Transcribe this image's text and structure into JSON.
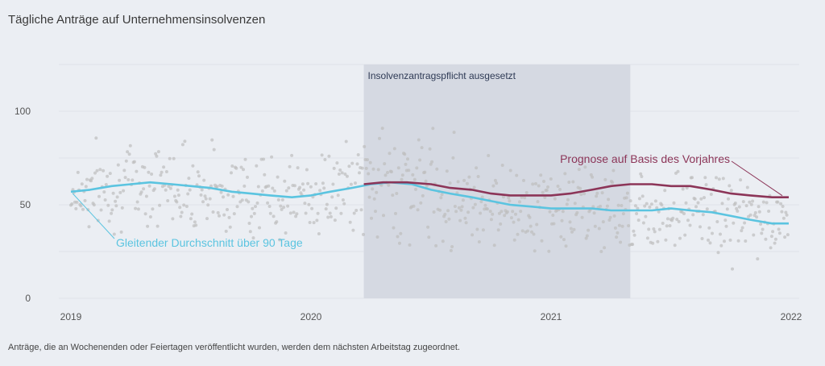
{
  "title": "Tägliche Anträge auf Unternehmensinsolvenzen",
  "footnote": "Anträge, die an Wochenenden oder Feiertagen veröffentlicht wurden, werden dem nächsten Arbeitstag zugeordnet.",
  "colors": {
    "background": "#ebeef3",
    "gridline": "#dfe3ea",
    "shade": "#d5d9e2",
    "dots": "#bdbdbd",
    "moving_average": "#5bc4e0",
    "forecast": "#8c3558"
  },
  "chart_data": {
    "type": "line",
    "title": "Tägliche Anträge auf Unternehmensinsolvenzen",
    "xlabel": "",
    "ylabel": "",
    "xlim": [
      2019.0,
      2022.0
    ],
    "ylim": [
      0,
      125
    ],
    "x_ticks": [
      "2019",
      "2020",
      "2021",
      "2022"
    ],
    "y_ticks": [
      0,
      50,
      100
    ],
    "grid": true,
    "shaded_period": {
      "label": "Insolvenzantragspflicht ausgesetzt",
      "x_start": 2020.22,
      "x_end": 2021.33
    },
    "series": [
      {
        "name": "Gleitender Durchschnitt über 90 Tage",
        "x": [
          2019.0,
          2019.08,
          2019.17,
          2019.25,
          2019.33,
          2019.42,
          2019.5,
          2019.58,
          2019.67,
          2019.75,
          2019.83,
          2019.92,
          2020.0,
          2020.08,
          2020.17,
          2020.25,
          2020.33,
          2020.42,
          2020.5,
          2020.58,
          2020.67,
          2020.75,
          2020.83,
          2020.92,
          2021.0,
          2021.08,
          2021.17,
          2021.25,
          2021.33,
          2021.42,
          2021.5,
          2021.58,
          2021.67,
          2021.75,
          2021.83,
          2021.92,
          2021.99
        ],
        "y": [
          57,
          58,
          60,
          61,
          62,
          61,
          60,
          59,
          57,
          56,
          55,
          54,
          55,
          57,
          59,
          61,
          62,
          61,
          58,
          56,
          54,
          52,
          50,
          49,
          48,
          48,
          48,
          47,
          47,
          47,
          48,
          47,
          46,
          44,
          42,
          40,
          40
        ]
      },
      {
        "name": "Prognose auf Basis des Vorjahres",
        "x": [
          2020.22,
          2020.3,
          2020.4,
          2020.5,
          2020.58,
          2020.67,
          2020.75,
          2020.83,
          2020.92,
          2021.0,
          2021.08,
          2021.17,
          2021.25,
          2021.33,
          2021.42,
          2021.5,
          2021.58,
          2021.67,
          2021.75,
          2021.83,
          2021.92,
          2021.99
        ],
        "y": [
          61,
          62,
          62,
          61,
          59,
          58,
          56,
          55,
          55,
          55,
          56,
          58,
          60,
          61,
          61,
          60,
          60,
          58,
          56,
          55,
          54,
          54
        ]
      }
    ],
    "annotations": [
      {
        "text": "Gleitender Durchschnitt über 90 Tage",
        "series": 0
      },
      {
        "text": "Prognose auf Basis des Vorjahres",
        "series": 1
      }
    ]
  }
}
